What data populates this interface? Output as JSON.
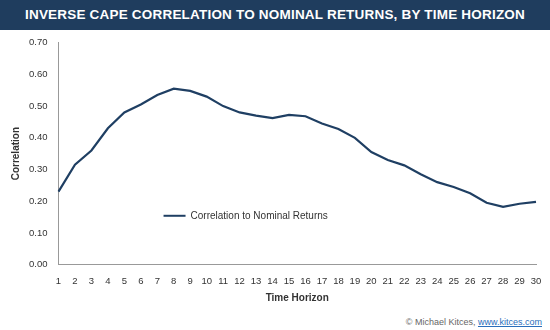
{
  "chart_data": {
    "type": "line",
    "title": "INVERSE CAPE CORRELATION TO NOMINAL RETURNS, BY TIME HORIZON",
    "x_label": "Time Horizon",
    "y_label": "Correlation",
    "annotations": [
      "© Michael Kitces, www.kitces.com"
    ],
    "categories": [
      "1",
      "2",
      "3",
      "4",
      "5",
      "6",
      "7",
      "8",
      "9",
      "10",
      "11",
      "12",
      "13",
      "14",
      "15",
      "16",
      "17",
      "18",
      "19",
      "20",
      "21",
      "22",
      "23",
      "24",
      "25",
      "26",
      "27",
      "28",
      "29",
      "30"
    ],
    "series": [
      {
        "name": "Correlation to Nominal Returns",
        "color": "#1f3f63",
        "values": [
          0.23,
          0.315,
          0.36,
          0.43,
          0.48,
          0.505,
          0.535,
          0.555,
          0.548,
          0.53,
          0.5,
          0.48,
          0.47,
          0.462,
          0.472,
          0.468,
          0.445,
          0.428,
          0.4,
          0.355,
          0.33,
          0.313,
          0.285,
          0.26,
          0.245,
          0.225,
          0.195,
          0.182,
          0.192,
          0.198
        ]
      }
    ],
    "ylim": [
      0,
      0.7
    ],
    "yticks": [
      {
        "value": 0,
        "label": "0.00"
      },
      {
        "value": 0.1,
        "label": "0.10"
      },
      {
        "value": 0.2,
        "label": "0.20"
      },
      {
        "value": 0.3,
        "label": "0.30"
      },
      {
        "value": 0.4,
        "label": "0.40"
      },
      {
        "value": 0.5,
        "label": "0.50"
      },
      {
        "value": 0.6,
        "label": "0.60"
      },
      {
        "value": 0.7,
        "label": "0.70"
      }
    ],
    "grid": false,
    "legend": "lower center"
  }
}
